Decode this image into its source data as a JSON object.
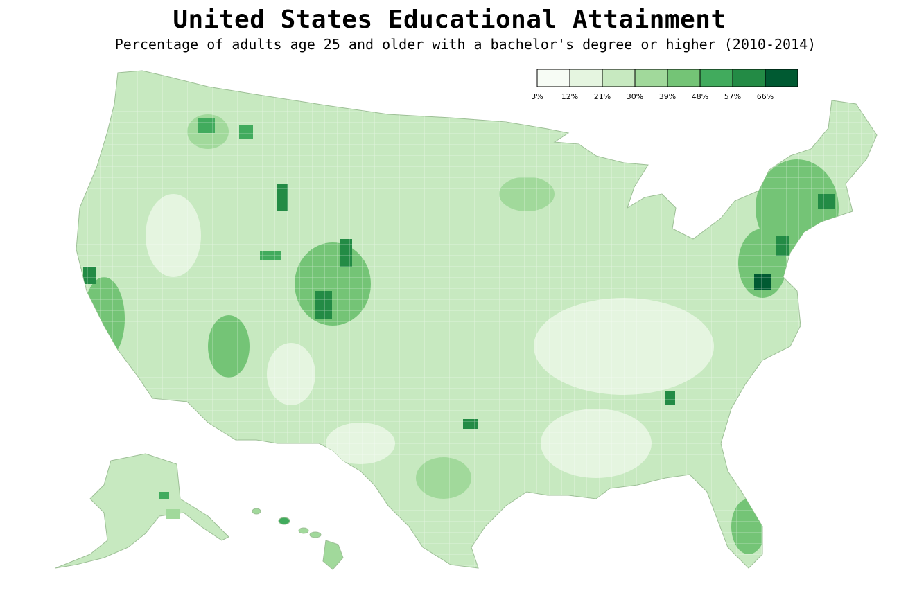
{
  "title": "United States Educational Attainment",
  "subtitle": "Percentage of adults age 25 and older with a bachelor's degree or higher (2010-2014)",
  "legend": {
    "ticks": [
      "3%",
      "12%",
      "21%",
      "30%",
      "39%",
      "48%",
      "57%",
      "66%"
    ],
    "colors": [
      "#f7fcf5",
      "#e5f5e0",
      "#c7e9c0",
      "#a1d99b",
      "#74c476",
      "#41ab5d",
      "#238b45",
      "#005a32"
    ]
  },
  "map": {
    "fill_base": "#c7e9c0",
    "border_color": "#9dbf96",
    "regions": [
      "contiguous-us",
      "alaska",
      "hawaii"
    ]
  }
}
